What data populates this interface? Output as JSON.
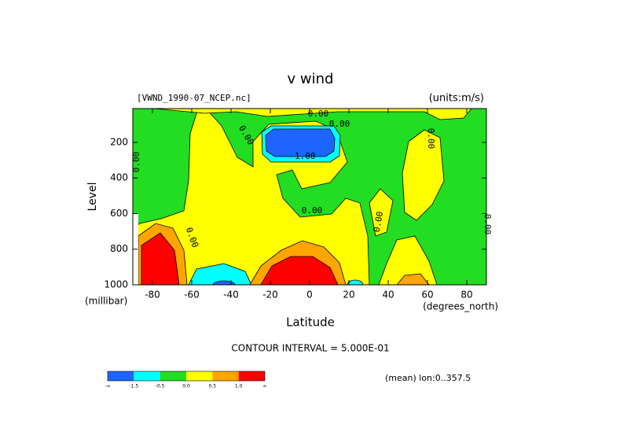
{
  "chart_data": {
    "type": "contour",
    "title": "v wind",
    "subtitle_left": "[VWND_1990-07_NCEP.nc]",
    "subtitle_right": "(units:m/s)",
    "x_label": "Latitude",
    "x_units": "(degrees_north)",
    "y_label": "Level",
    "y_units": "(millibar)",
    "xlim": [
      -90,
      90
    ],
    "xticks": [
      -80,
      -60,
      -40,
      -20,
      0,
      20,
      40,
      60,
      80
    ],
    "ylim": [
      1000,
      10
    ],
    "yticks": [
      200,
      400,
      600,
      800,
      1000
    ],
    "contour_interval_text": "CONTOUR INTERVAL = 5.000E-01",
    "footnote": "(mean) lon:0..357.5",
    "contour_labels": [
      "0.00",
      "0.00",
      "0.00",
      "-1.00",
      "0.00",
      "0.00",
      "0.00",
      "0.00",
      "0.00",
      "0.00"
    ],
    "colorbar": {
      "colors": [
        "#1e64ff",
        "#00ffff",
        "#22dd22",
        "#ffff00",
        "#ffa500",
        "#ff0000"
      ],
      "labels": [
        "-∞",
        "-1.5",
        "-0.5",
        "0.0",
        "0.5",
        "1.0",
        "∞"
      ]
    }
  }
}
